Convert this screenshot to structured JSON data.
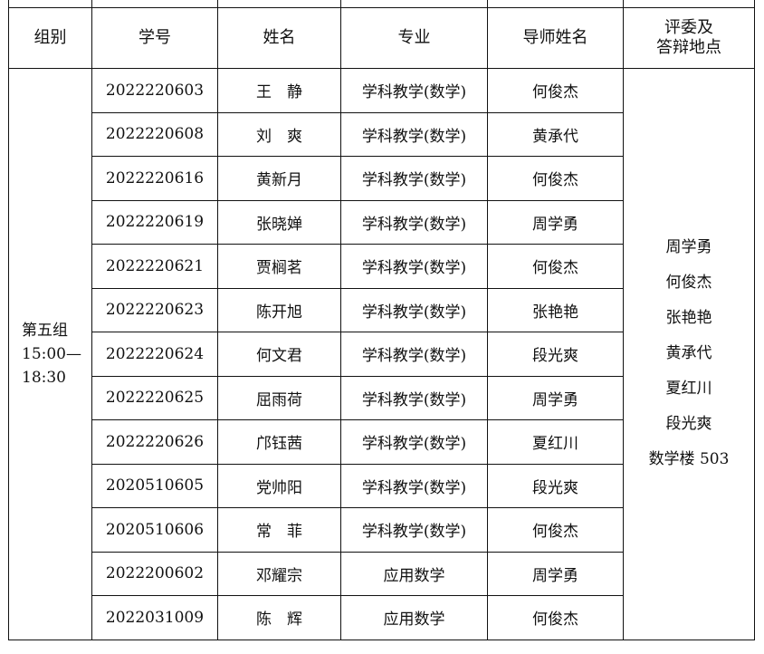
{
  "headers": [
    "组别",
    "学号",
    "姓名",
    "专业",
    "导师姓名",
    "评委及\n答辩地点"
  ],
  "group": {
    "name": "第五组",
    "time_start": "15:00—",
    "time_end": "18:30"
  },
  "committee": [
    "周学勇",
    "何俊杰",
    "张艳艳",
    "黄承代",
    "夏红川",
    "段光爽",
    "数学楼 503"
  ],
  "rows": [
    {
      "id": "2022220603",
      "name": "王　静",
      "major": "学科教学(数学)",
      "advisor": "何俊杰"
    },
    {
      "id": "2022220608",
      "name": "刘　爽",
      "major": "学科教学(数学)",
      "advisor": "黄承代"
    },
    {
      "id": "2022220616",
      "name": "黄新月",
      "major": "学科教学(数学)",
      "advisor": "何俊杰"
    },
    {
      "id": "2022220619",
      "name": "张晓婵",
      "major": "学科教学(数学)",
      "advisor": "周学勇"
    },
    {
      "id": "2022220621",
      "name": "贾榈茗",
      "major": "学科教学(数学)",
      "advisor": "何俊杰"
    },
    {
      "id": "2022220623",
      "name": "陈开旭",
      "major": "学科教学(数学)",
      "advisor": "张艳艳"
    },
    {
      "id": "2022220624",
      "name": "何文君",
      "major": "学科教学(数学)",
      "advisor": "段光爽"
    },
    {
      "id": "2022220625",
      "name": "屈雨荷",
      "major": "学科教学(数学)",
      "advisor": "周学勇"
    },
    {
      "id": "2022220626",
      "name": "邝钰茜",
      "major": "学科教学(数学)",
      "advisor": "夏红川"
    },
    {
      "id": "2020510605",
      "name": "党帅阳",
      "major": "学科教学(数学)",
      "advisor": "段光爽"
    },
    {
      "id": "2020510606",
      "name": "常　菲",
      "major": "学科教学(数学)",
      "advisor": "何俊杰"
    },
    {
      "id": "2022200602",
      "name": "邓耀宗",
      "major": "应用数学",
      "advisor": "周学勇"
    },
    {
      "id": "2022031009",
      "name": "陈　辉",
      "major": "应用数学",
      "advisor": "何俊杰"
    }
  ]
}
